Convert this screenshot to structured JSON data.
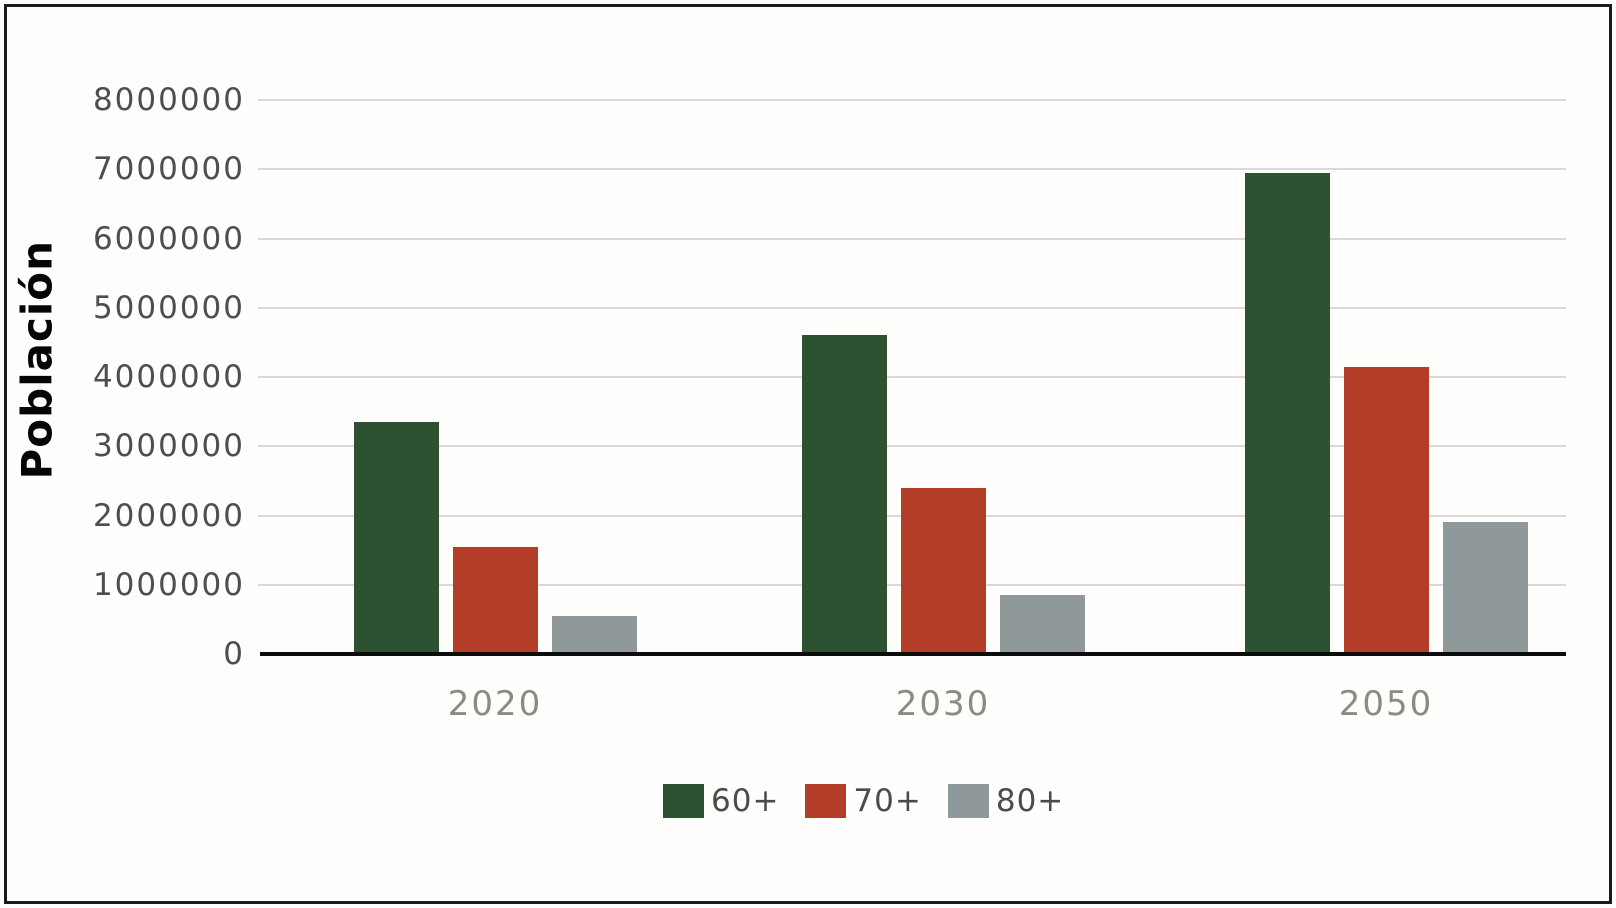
{
  "figure": {
    "background": "#ffffff",
    "border_color": "#1b1b1b"
  },
  "chart_data": {
    "type": "bar",
    "title": "",
    "xlabel": "",
    "ylabel": "Población",
    "categories": [
      "2020",
      "2030",
      "2050"
    ],
    "series": [
      {
        "name": "60+",
        "color": "#2d5232",
        "values": [
          3350000,
          4600000,
          6950000
        ]
      },
      {
        "name": "70+",
        "color": "#b43d28",
        "values": [
          1550000,
          2400000,
          4150000
        ]
      },
      {
        "name": "80+",
        "color": "#8f999a",
        "values": [
          550000,
          850000,
          1900000
        ]
      }
    ],
    "ylim": [
      0,
      8000000
    ],
    "ytick_step": 1000000,
    "ytick_labels": [
      "0",
      "1000000",
      "2000000",
      "3000000",
      "4000000",
      "5000000",
      "6000000",
      "7000000",
      "8000000"
    ],
    "grid": "horizontal",
    "legend_position": "bottom"
  }
}
